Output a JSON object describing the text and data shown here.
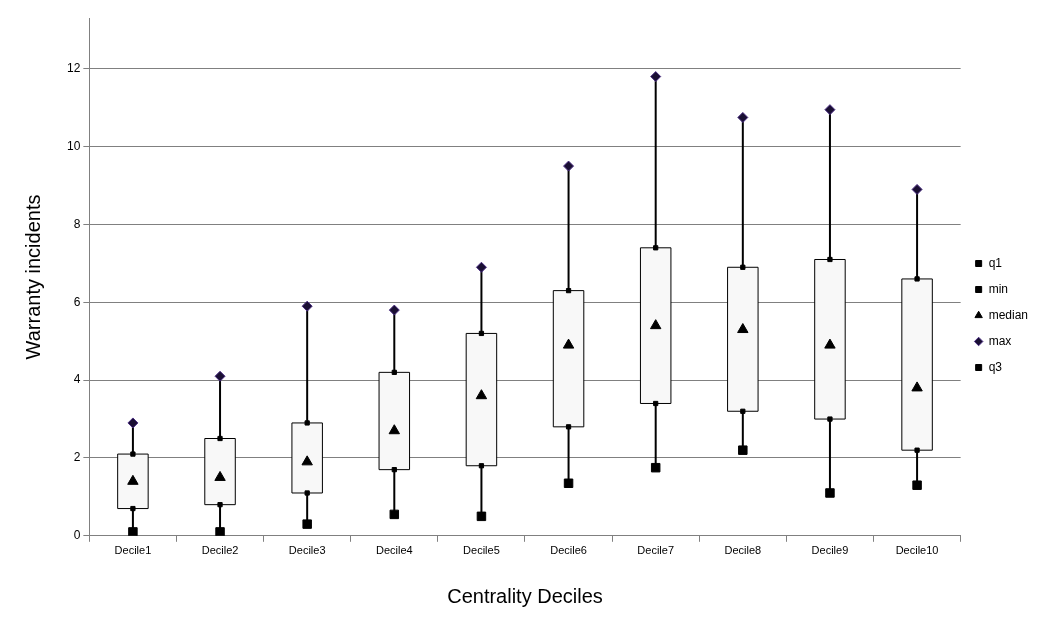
{
  "chart_data": {
    "type": "box",
    "xlabel": "Centrality Deciles",
    "ylabel": "Warranty incidents",
    "categories": [
      "Decile1",
      "Decile2",
      "Decile3",
      "Decile4",
      "Decile5",
      "Decile6",
      "Decile7",
      "Decile8",
      "Decile9",
      "Decile10"
    ],
    "boxes": [
      {
        "low": 0.1,
        "q1": 0.7,
        "q3": 2.1,
        "high": 2.9
      },
      {
        "low": 0.1,
        "q1": 0.8,
        "q3": 2.5,
        "high": 4.1
      },
      {
        "low": 0.3,
        "q1": 1.1,
        "q3": 2.9,
        "high": 5.9
      },
      {
        "low": 0.55,
        "q1": 1.7,
        "q3": 4.2,
        "high": 5.8
      },
      {
        "low": 0.5,
        "q1": 1.8,
        "q3": 5.2,
        "high": 6.9
      },
      {
        "low": 1.35,
        "q1": 2.8,
        "q3": 6.3,
        "high": 9.5
      },
      {
        "low": 1.75,
        "q1": 3.4,
        "q3": 7.4,
        "high": 11.8
      },
      {
        "low": 2.2,
        "q1": 3.2,
        "q3": 6.9,
        "high": 10.75
      },
      {
        "low": 1.1,
        "q1": 3.0,
        "q3": 7.1,
        "high": 10.95
      },
      {
        "low": 1.3,
        "q1": 2.2,
        "q3": 6.6,
        "high": 8.9
      }
    ],
    "series": [
      {
        "name": "q1",
        "type": "scatter",
        "marker": "square",
        "color": "#000000",
        "values": [
          0.7,
          0.8,
          1.1,
          1.7,
          1.8,
          2.8,
          3.4,
          3.2,
          3.0,
          2.2
        ]
      },
      {
        "name": "min",
        "type": "scatter",
        "marker": "square",
        "color": "#000000",
        "values": [
          0.1,
          0.1,
          0.3,
          0.55,
          0.5,
          1.35,
          1.75,
          2.2,
          1.1,
          1.3
        ]
      },
      {
        "name": "median",
        "type": "scatter",
        "marker": "triangle",
        "color": "#000000",
        "values": [
          1.4,
          1.5,
          1.9,
          2.7,
          3.6,
          4.9,
          5.4,
          5.3,
          4.9,
          3.8
        ]
      },
      {
        "name": "max",
        "type": "scatter",
        "marker": "diamond",
        "color": "#1a0f33",
        "values": [
          2.9,
          4.1,
          5.9,
          5.8,
          6.9,
          9.5,
          11.8,
          10.75,
          10.95,
          8.9
        ]
      },
      {
        "name": "q3",
        "type": "scatter",
        "marker": "square",
        "color": "#000000",
        "values": [
          2.1,
          2.5,
          2.9,
          4.2,
          5.2,
          6.3,
          7.4,
          6.9,
          7.1,
          6.6
        ]
      }
    ],
    "ylim": [
      0,
      13.3
    ],
    "yticks": [
      0,
      2,
      4,
      6,
      8,
      10,
      12
    ],
    "grid": "y",
    "legend": "right"
  }
}
